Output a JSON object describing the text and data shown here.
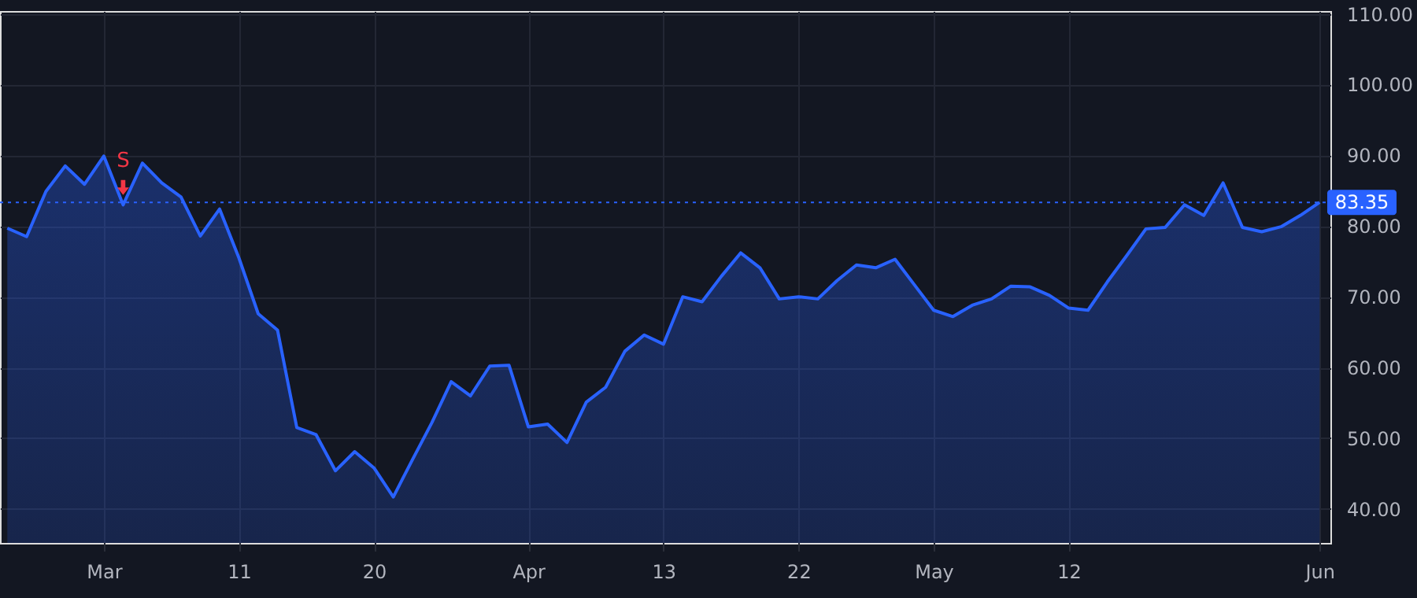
{
  "chart_data": {
    "type": "area",
    "categories": [
      null,
      null,
      null,
      null,
      null,
      "Mar",
      null,
      null,
      null,
      null,
      null,
      null,
      "11",
      null,
      null,
      null,
      null,
      null,
      null,
      "20",
      null,
      null,
      null,
      null,
      null,
      null,
      null,
      "Apr",
      null,
      null,
      null,
      null,
      null,
      null,
      "13",
      null,
      null,
      null,
      null,
      null,
      null,
      "22",
      null,
      null,
      null,
      null,
      null,
      null,
      "May",
      null,
      null,
      null,
      null,
      null,
      null,
      "12",
      null,
      null,
      null,
      null,
      null,
      null,
      null,
      null,
      null,
      null,
      null,
      null,
      "Jun"
    ],
    "series": [
      {
        "color": "#2962ff",
        "values": [
          79.7,
          78.5,
          84.9,
          88.5,
          85.9,
          89.9,
          83.0,
          88.9,
          86.1,
          84.1,
          78.6,
          82.4,
          75.5,
          67.6,
          65.3,
          51.5,
          50.5,
          45.4,
          48.1,
          45.8,
          41.7,
          47.0,
          52.2,
          58.0,
          56.0,
          60.2,
          60.3,
          51.6,
          52.0,
          49.4,
          55.1,
          57.2,
          62.3,
          64.6,
          63.3,
          70.0,
          69.3,
          72.9,
          76.2,
          74.1,
          69.7,
          70.0,
          69.7,
          72.3,
          74.5,
          74.1,
          75.3,
          71.7,
          68.1,
          67.2,
          68.8,
          69.7,
          71.5,
          71.4,
          70.2,
          68.4,
          68.1,
          72.1,
          75.8,
          79.6,
          79.8,
          83.0,
          81.5,
          86.1,
          79.8,
          79.2,
          79.9,
          81.5,
          83.35
        ]
      }
    ],
    "ylim": [
      35.2,
      110.4
    ],
    "yticks": [
      {
        "value": 40,
        "label": "40.00"
      },
      {
        "value": 50,
        "label": "50.00"
      },
      {
        "value": 60,
        "label": "60.00"
      },
      {
        "value": 70,
        "label": "70.00"
      },
      {
        "value": 80,
        "label": "80.00"
      },
      {
        "value": 90,
        "label": "90.00"
      },
      {
        "value": 100,
        "label": "100.00"
      },
      {
        "value": 110,
        "label": "110.00"
      }
    ],
    "ref_lines": [
      {
        "axis": "y",
        "value": 83.35,
        "label": "83.35",
        "color": "#2962ff",
        "line_style": "dotted"
      }
    ],
    "annotations": [
      {
        "text": "S",
        "y": 83.0
      }
    ],
    "grid": true
  }
}
